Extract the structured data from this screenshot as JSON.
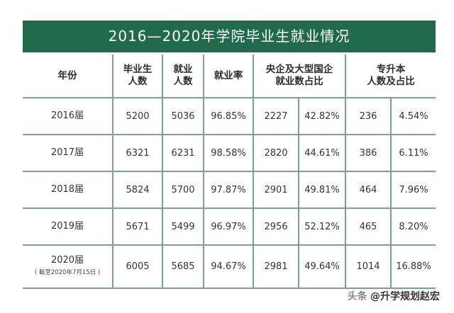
{
  "title": "2016—2020年学院毕业生就业情况",
  "headers": {
    "year": "年份",
    "graduates_l1": "毕业生",
    "graduates_l2": "人数",
    "employed_l1": "就业",
    "employed_l2": "人数",
    "rate": "就业率",
    "soe_l1": "央企及大型国企",
    "soe_l2": "就业数占比",
    "upgrade_l1": "专升本",
    "upgrade_l2": "人数及占比"
  },
  "rows": [
    {
      "year": "2016届",
      "note": "",
      "grads": "5200",
      "employed": "5036",
      "rate": "96.85%",
      "soe": "2227",
      "soe_pct": "42.82%",
      "up": "236",
      "up_pct": "4.54%"
    },
    {
      "year": "2017届",
      "note": "",
      "grads": "6321",
      "employed": "6231",
      "rate": "98.58%",
      "soe": "2820",
      "soe_pct": "44.61%",
      "up": "386",
      "up_pct": "6.11%"
    },
    {
      "year": "2018届",
      "note": "",
      "grads": "5824",
      "employed": "5700",
      "rate": "97.87%",
      "soe": "2901",
      "soe_pct": "49.81%",
      "up": "464",
      "up_pct": "7.96%"
    },
    {
      "year": "2019届",
      "note": "",
      "grads": "5671",
      "employed": "5499",
      "rate": "96.97%",
      "soe": "2956",
      "soe_pct": "52.12%",
      "up": "465",
      "up_pct": "8.20%"
    },
    {
      "year": "2020届",
      "note": "( 截至2020年7月15日 )",
      "grads": "6005",
      "employed": "5685",
      "rate": "94.67%",
      "soe": "2981",
      "soe_pct": "49.64%",
      "up": "1014",
      "up_pct": "16.88%"
    }
  ],
  "footer": {
    "prefix": "头条 ",
    "handle": "@升学规划赵宏"
  }
}
